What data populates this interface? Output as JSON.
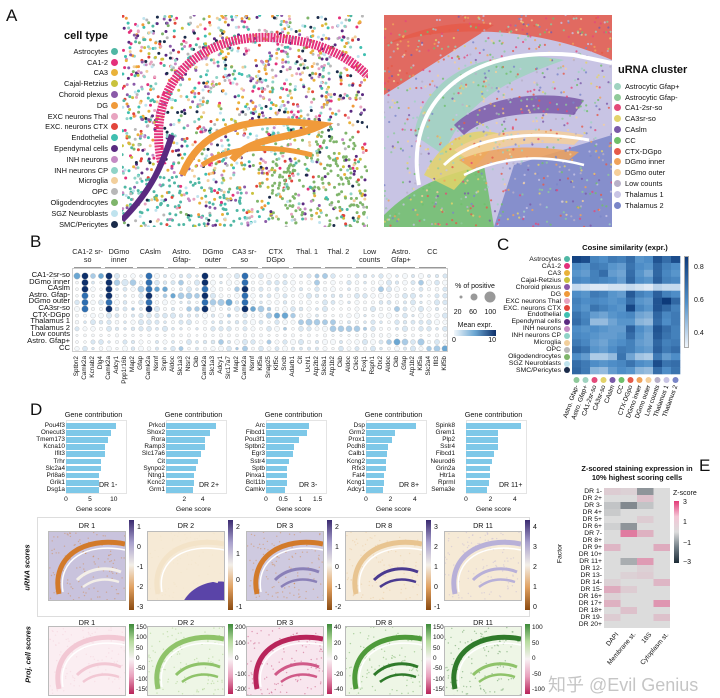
{
  "panel_labels": [
    "A",
    "B",
    "C",
    "D",
    "E"
  ],
  "panel_a": {
    "cell_type": {
      "title": "cell type",
      "items": [
        {
          "label": "Astrocytes",
          "color": "#4fb7a4"
        },
        {
          "label": "CA1-2",
          "color": "#e4307a"
        },
        {
          "label": "CA3",
          "color": "#e9b23a"
        },
        {
          "label": "Cajal-Retzius",
          "color": "#c9c23d"
        },
        {
          "label": "Choroid plexus",
          "color": "#8a5aa8"
        },
        {
          "label": "DG",
          "color": "#f09a3a"
        },
        {
          "label": "EXC neurons Thal",
          "color": "#e8a4c0"
        },
        {
          "label": "EXC. neurons CTX",
          "color": "#e2453c"
        },
        {
          "label": "Endothelial",
          "color": "#3fbfb0"
        },
        {
          "label": "Ependymal cells",
          "color": "#5a2a80"
        },
        {
          "label": "INH neurons",
          "color": "#c58ac4"
        },
        {
          "label": "INH neurons CP",
          "color": "#8fd3c7"
        },
        {
          "label": "Microglia",
          "color": "#f2cf9c"
        },
        {
          "label": "OPC",
          "color": "#b8b8b8"
        },
        {
          "label": "Oligodendrocytes",
          "color": "#7fb56b"
        },
        {
          "label": "SGZ Neuroblasts",
          "color": "#bfe3ee"
        },
        {
          "label": "SMC/Pericytes",
          "color": "#1a2b4a"
        }
      ]
    },
    "urna_cluster": {
      "title": "uRNA cluster",
      "items": [
        {
          "label": "Astrocytic Gfap+",
          "color": "#9fd3c0"
        },
        {
          "label": "Astrocytic Gfap-",
          "color": "#8fc99a"
        },
        {
          "label": "CA1-2sr-so",
          "color": "#e44a7a"
        },
        {
          "label": "CA3sr-so",
          "color": "#e3d36a"
        },
        {
          "label": "CAslm",
          "color": "#7a5aa8"
        },
        {
          "label": "CC",
          "color": "#6fbf6a"
        },
        {
          "label": "CTX-DGpo",
          "color": "#e55a4a"
        },
        {
          "label": "DGmo inner",
          "color": "#f0a35a"
        },
        {
          "label": "DGmo outer",
          "color": "#f5cf9a"
        },
        {
          "label": "Low counts",
          "color": "#b8b0c8"
        },
        {
          "label": "Thalamus 1",
          "color": "#c8c4e4"
        },
        {
          "label": "Thalamus 2",
          "color": "#7a86c8"
        }
      ]
    }
  },
  "panel_b": {
    "chart_data": {
      "type": "scatter",
      "title": "",
      "column_groups": [
        "CA1-2 sr-so",
        "DGmo inner",
        "CAslm",
        "Astro. Gfap-",
        "DGmo outer",
        "CA3 sr-so",
        "CTX DGpo",
        "Thal. 1",
        "Thal. 2",
        "Low counts",
        "Astro. Gfap+",
        "CC"
      ],
      "rows": [
        "CA1-2sr-so",
        "DGmo inner",
        "CAslm",
        "Astro. Gfap-",
        "DGmo outer",
        "CA3sr-so",
        "CTX-DGpo",
        "Thalamus 1",
        "Thalamus 2",
        "Low counts",
        "Astro. Gfap+",
        "CC"
      ],
      "genes": [
        "Sptbn2",
        "Camk2a",
        "Kcnab2",
        "Dlg4",
        "Camk2a",
        "Adcy1",
        "Ppp1r16b",
        "Map2",
        "Gfap",
        "Camk2a",
        "Nsmf",
        "Snph",
        "Aldoc",
        "Slc1a3",
        "Ntsr2",
        "Ckb",
        "Camk2a",
        "Slc1a3",
        "Adcy1",
        "Slc17a7",
        "Map2",
        "Camk2a",
        "Nsmf",
        "Kif5a",
        "Snap25",
        "Kif5c",
        "Sncb",
        "Adarb1",
        "Cit",
        "Uchl1",
        "Atp2b2",
        "Slc8a1",
        "Atp1b2",
        "Ckb",
        "Aldoc",
        "Clic6",
        "Foxj1",
        "Rsph1",
        "Otx2",
        "Aldoc",
        "Ckb",
        "Gfap",
        "Atp1b2",
        "Kif5a",
        "Slc2a4",
        "Ifit3",
        "Kif5b"
      ],
      "strong_gene_indices": [
        1,
        4,
        9,
        16,
        21
      ],
      "size_legend": {
        "title": "% of positive",
        "ticks": [
          "20",
          "60",
          "100"
        ]
      },
      "color_legend": {
        "title": "Mean expr.",
        "ticks": [
          "0",
          "10"
        ]
      }
    }
  },
  "panel_c": {
    "chart_data": {
      "type": "heatmap",
      "title": "Cosine similarity (expr.)",
      "rows": [
        "Astrocytes",
        "CA1-2",
        "CA3",
        "Cajal-Retzius",
        "Choroid plexus",
        "DG",
        "EXC neurons Thal",
        "EXC. neurons CTX",
        "Endothelial",
        "Ependymal cells",
        "INH neurons",
        "INH neurons CP",
        "Microglia",
        "OPC",
        "Oligodendrocytes",
        "SGZ Neuroblasts",
        "SMC/Pericytes"
      ],
      "columns": [
        "Astro. Gfap-",
        "Astro. Gfap+",
        "CA1-2sr-so",
        "CA3sr-so",
        "CAslm",
        "CC",
        "CTX-DGpo",
        "DGmo inner",
        "DGmo outer",
        "Low counts",
        "Thalamus 1",
        "Thalamus 2"
      ],
      "values": [
        [
          0.85,
          0.82,
          0.65,
          0.62,
          0.68,
          0.66,
          0.72,
          0.6,
          0.62,
          0.8,
          0.72,
          0.82
        ],
        [
          0.62,
          0.6,
          0.68,
          0.66,
          0.6,
          0.58,
          0.7,
          0.62,
          0.6,
          0.74,
          0.66,
          0.62
        ],
        [
          0.6,
          0.58,
          0.66,
          0.72,
          0.58,
          0.56,
          0.72,
          0.6,
          0.55,
          0.74,
          0.64,
          0.6
        ],
        [
          0.64,
          0.62,
          0.66,
          0.64,
          0.62,
          0.58,
          0.74,
          0.62,
          0.6,
          0.76,
          0.66,
          0.64
        ],
        [
          0.42,
          0.4,
          0.38,
          0.38,
          0.4,
          0.4,
          0.42,
          0.4,
          0.38,
          0.44,
          0.42,
          0.42
        ],
        [
          0.62,
          0.6,
          0.68,
          0.66,
          0.6,
          0.58,
          0.78,
          0.66,
          0.62,
          0.76,
          0.66,
          0.62
        ],
        [
          0.66,
          0.62,
          0.64,
          0.62,
          0.6,
          0.62,
          0.72,
          0.6,
          0.58,
          0.8,
          0.88,
          0.74
        ],
        [
          0.64,
          0.6,
          0.7,
          0.66,
          0.62,
          0.6,
          0.84,
          0.64,
          0.6,
          0.8,
          0.74,
          0.66
        ],
        [
          0.7,
          0.64,
          0.58,
          0.56,
          0.6,
          0.62,
          0.64,
          0.56,
          0.54,
          0.74,
          0.64,
          0.68
        ],
        [
          0.72,
          0.66,
          0.5,
          0.5,
          0.56,
          0.6,
          0.6,
          0.52,
          0.5,
          0.72,
          0.62,
          0.68
        ],
        [
          0.62,
          0.6,
          0.62,
          0.6,
          0.58,
          0.58,
          0.76,
          0.62,
          0.58,
          0.8,
          0.72,
          0.66
        ],
        [
          0.64,
          0.62,
          0.6,
          0.58,
          0.58,
          0.6,
          0.72,
          0.6,
          0.56,
          0.78,
          0.7,
          0.66
        ],
        [
          0.68,
          0.64,
          0.58,
          0.56,
          0.6,
          0.62,
          0.66,
          0.58,
          0.56,
          0.74,
          0.66,
          0.68
        ],
        [
          0.74,
          0.7,
          0.6,
          0.58,
          0.62,
          0.68,
          0.66,
          0.6,
          0.58,
          0.76,
          0.68,
          0.72
        ],
        [
          0.62,
          0.58,
          0.46,
          0.46,
          0.5,
          0.7,
          0.56,
          0.48,
          0.46,
          0.68,
          0.58,
          0.62
        ],
        [
          0.72,
          0.68,
          0.62,
          0.6,
          0.62,
          0.64,
          0.7,
          0.62,
          0.6,
          0.82,
          0.7,
          0.72
        ],
        [
          0.74,
          0.68,
          0.52,
          0.5,
          0.58,
          0.62,
          0.6,
          0.52,
          0.5,
          0.72,
          0.62,
          0.7
        ]
      ],
      "colorbar_ticks": [
        "0.8",
        "0.6",
        "0.4"
      ],
      "range": [
        0.35,
        0.88
      ]
    }
  },
  "panel_d": {
    "bar_charts": [
      {
        "title": "Gene contribution",
        "tag": "DR 1-",
        "xlabel": "Gene score",
        "xmax": 11.5,
        "ticks": [
          0,
          5,
          10
        ],
        "genes": [
          "Pou4f3",
          "Onecut3",
          "Tmem173",
          "Kcna10",
          "Ifit3",
          "Trhr",
          "Slc2a4",
          "Prl8a6",
          "Grik1",
          "Dsg1a"
        ],
        "values": [
          10.5,
          9.5,
          8.7,
          8.2,
          8.2,
          7.3,
          7.3,
          6.9,
          6.8,
          6.8
        ]
      },
      {
        "title": "Gene contribution",
        "tag": "DR 2+",
        "xlabel": "Gene score",
        "xmax": 6,
        "ticks": [
          2,
          4
        ],
        "genes": [
          "Prkcd",
          "Shox2",
          "Rora",
          "Ramp3",
          "Slc17a6",
          "Cit",
          "Synpo2",
          "Ntng1",
          "Kcnc2",
          "Grm1"
        ],
        "values": [
          5.5,
          4.8,
          4.3,
          4.3,
          3.8,
          3.5,
          3.3,
          3.0,
          3.0,
          2.9
        ]
      },
      {
        "title": "Gene contribution",
        "tag": "DR 3-",
        "xlabel": "Gene score",
        "xmax": 1.6,
        "ticks": [
          0,
          0.5,
          1.0,
          1.5
        ],
        "genes": [
          "Arc",
          "Fibcd1",
          "Pou3f1",
          "Sptbn2",
          "Egr3",
          "Sstr4",
          "Sptb",
          "Pinxa1",
          "Bcl11b",
          "Camkv"
        ],
        "values": [
          1.25,
          1.2,
          0.95,
          0.8,
          0.78,
          0.68,
          0.62,
          0.6,
          0.6,
          0.55
        ]
      },
      {
        "title": "Gene contribution",
        "tag": "DR 8+",
        "xlabel": "Gene score",
        "xmax": 4.5,
        "ticks": [
          0,
          2,
          4
        ],
        "genes": [
          "Dsp",
          "Grm2",
          "Prox1",
          "Pcdh8",
          "Calb1",
          "Kcng2",
          "Rfx3",
          "Fat4",
          "Kcng1",
          "Adcy1"
        ],
        "values": [
          4.1,
          2.4,
          2.1,
          1.8,
          1.7,
          1.6,
          1.6,
          1.5,
          1.5,
          1.4
        ]
      },
      {
        "title": "Gene contribution",
        "tag": "DR 11+",
        "xlabel": "Gene score",
        "xmax": 4.5,
        "ticks": [
          0,
          2,
          4
        ],
        "genes": [
          "Spink8",
          "Grem1",
          "Plp2",
          "Sstr4",
          "Fibcd1",
          "Neurod6",
          "Grin2a",
          "Htr1a",
          "Rprml",
          "Sema3e"
        ],
        "values": [
          4.5,
          2.6,
          2.6,
          2.6,
          2.3,
          2.1,
          2.0,
          2.0,
          1.9,
          1.7
        ]
      }
    ],
    "urna_label": "uRNA scores",
    "proj_label": "Proj. cell scores",
    "urna_panels": [
      {
        "title": "DR 1",
        "ticks": [
          "1",
          "0",
          "-1",
          "-2",
          "-3"
        ]
      },
      {
        "title": "DR 2",
        "ticks": [
          "2",
          "1",
          "0",
          "-1"
        ]
      },
      {
        "title": "DR 3",
        "ticks": [
          "2",
          "1",
          "0",
          "-1",
          "-2"
        ]
      },
      {
        "title": "DR 8",
        "ticks": [
          "3",
          "2",
          "1",
          "0",
          "-1"
        ]
      },
      {
        "title": "DR 11",
        "ticks": [
          "4",
          "3",
          "2",
          "1",
          "0"
        ]
      }
    ],
    "proj_panels": [
      {
        "title": "DR 1",
        "ticks": [
          "150",
          "100",
          "50",
          "0",
          "-50",
          "-100",
          "-150"
        ]
      },
      {
        "title": "DR 2",
        "ticks": [
          "200",
          "100",
          "0",
          "-100",
          "-200"
        ]
      },
      {
        "title": "DR 3",
        "ticks": [
          "40",
          "20",
          "0",
          "-20",
          "-40"
        ]
      },
      {
        "title": "DR 8",
        "ticks": [
          "150",
          "100",
          "50",
          "0",
          "-50",
          "-100",
          "-150"
        ]
      },
      {
        "title": "DR 11",
        "ticks": [
          "100",
          "50",
          "0",
          "-50",
          "-100"
        ]
      }
    ]
  },
  "panel_e": {
    "chart_data": {
      "type": "heatmap",
      "title": "Z-scored staining expression in 10% highest scoring cells",
      "ylabel": "Factor",
      "rows": [
        "DR 1-",
        "DR 2+",
        "DR 3-",
        "DR 4+",
        "DR 5+",
        "DR 6+",
        "DR 7-",
        "DR 8+",
        "DR 9+",
        "DR 10+",
        "DR 11+",
        "DR 12-",
        "DR 13-",
        "DR 14-",
        "DR 15-",
        "DR 16+",
        "DR 17+",
        "DR 18+",
        "DR 19-",
        "DR 20+"
      ],
      "columns": [
        "DAPI",
        "Membrane st.",
        "18S",
        "Cytoplasm st."
      ],
      "values": [
        [
          0.3,
          0.2,
          -1.2,
          0
        ],
        [
          0,
          0,
          0.5,
          0
        ],
        [
          -0.4,
          -1.4,
          -0.4,
          0
        ],
        [
          -0.3,
          0,
          0,
          0
        ],
        [
          0,
          0,
          0.3,
          0
        ],
        [
          -0.2,
          -1.2,
          0,
          0
        ],
        [
          0,
          1.8,
          0.8,
          0
        ],
        [
          0,
          0,
          0,
          0
        ],
        [
          0.7,
          0,
          0,
          0.9
        ],
        [
          0,
          0,
          0,
          0
        ],
        [
          0,
          -0.8,
          1.2,
          0
        ],
        [
          0,
          0,
          0.2,
          0
        ],
        [
          0,
          0.2,
          0.3,
          0
        ],
        [
          0.2,
          0,
          0,
          0.7
        ],
        [
          0.9,
          0.3,
          0,
          0
        ],
        [
          0.2,
          0,
          0,
          0
        ],
        [
          0.8,
          0,
          0,
          1.3
        ],
        [
          0,
          0.5,
          0,
          0
        ],
        [
          0.3,
          0,
          0,
          0.5
        ],
        [
          0,
          0,
          0,
          0
        ]
      ],
      "colorbar_title": "Z-score",
      "colorbar_ticks": [
        "3",
        "1",
        "−1",
        "−3"
      ],
      "range": [
        -3,
        3
      ]
    }
  },
  "watermark": "知乎 @Evil Genius"
}
